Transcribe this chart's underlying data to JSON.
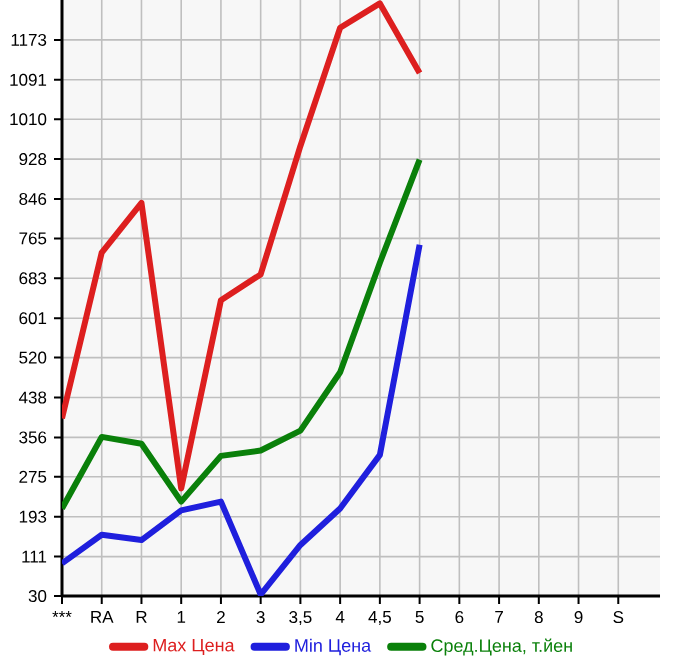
{
  "chart_data": {
    "type": "line",
    "categories": [
      "***",
      "RA",
      "R",
      "1",
      "2",
      "3",
      "3,5",
      "4",
      "4,5",
      "5",
      "6",
      "7",
      "8",
      "9",
      "S"
    ],
    "series": [
      {
        "name": "Max Цена",
        "color": "#dd1f1f",
        "values": [
          395,
          736,
          838,
          251,
          638,
          691,
          955,
          1198,
          1248,
          1105,
          null,
          null,
          null,
          null,
          null
        ]
      },
      {
        "name": "Min Цена",
        "color": "#1f1fdd",
        "values": [
          97,
          156,
          145,
          206,
          224,
          33,
          135,
          210,
          320,
          752,
          null,
          null,
          null,
          null,
          null
        ]
      },
      {
        "name": "Сред.Цена, т.йен",
        "color": "#0a800a",
        "values": [
          210,
          357,
          343,
          224,
          318,
          329,
          370,
          490,
          715,
          927,
          null,
          null,
          null,
          null,
          null
        ]
      }
    ],
    "ylim": [
      30,
      1255
    ],
    "yticks": [
      30,
      111,
      193,
      275,
      356,
      438,
      520,
      601,
      683,
      765,
      846,
      928,
      1010,
      1091,
      1173
    ],
    "grid": true,
    "legend": "bottom",
    "marker": "none",
    "line_style": "solid"
  }
}
